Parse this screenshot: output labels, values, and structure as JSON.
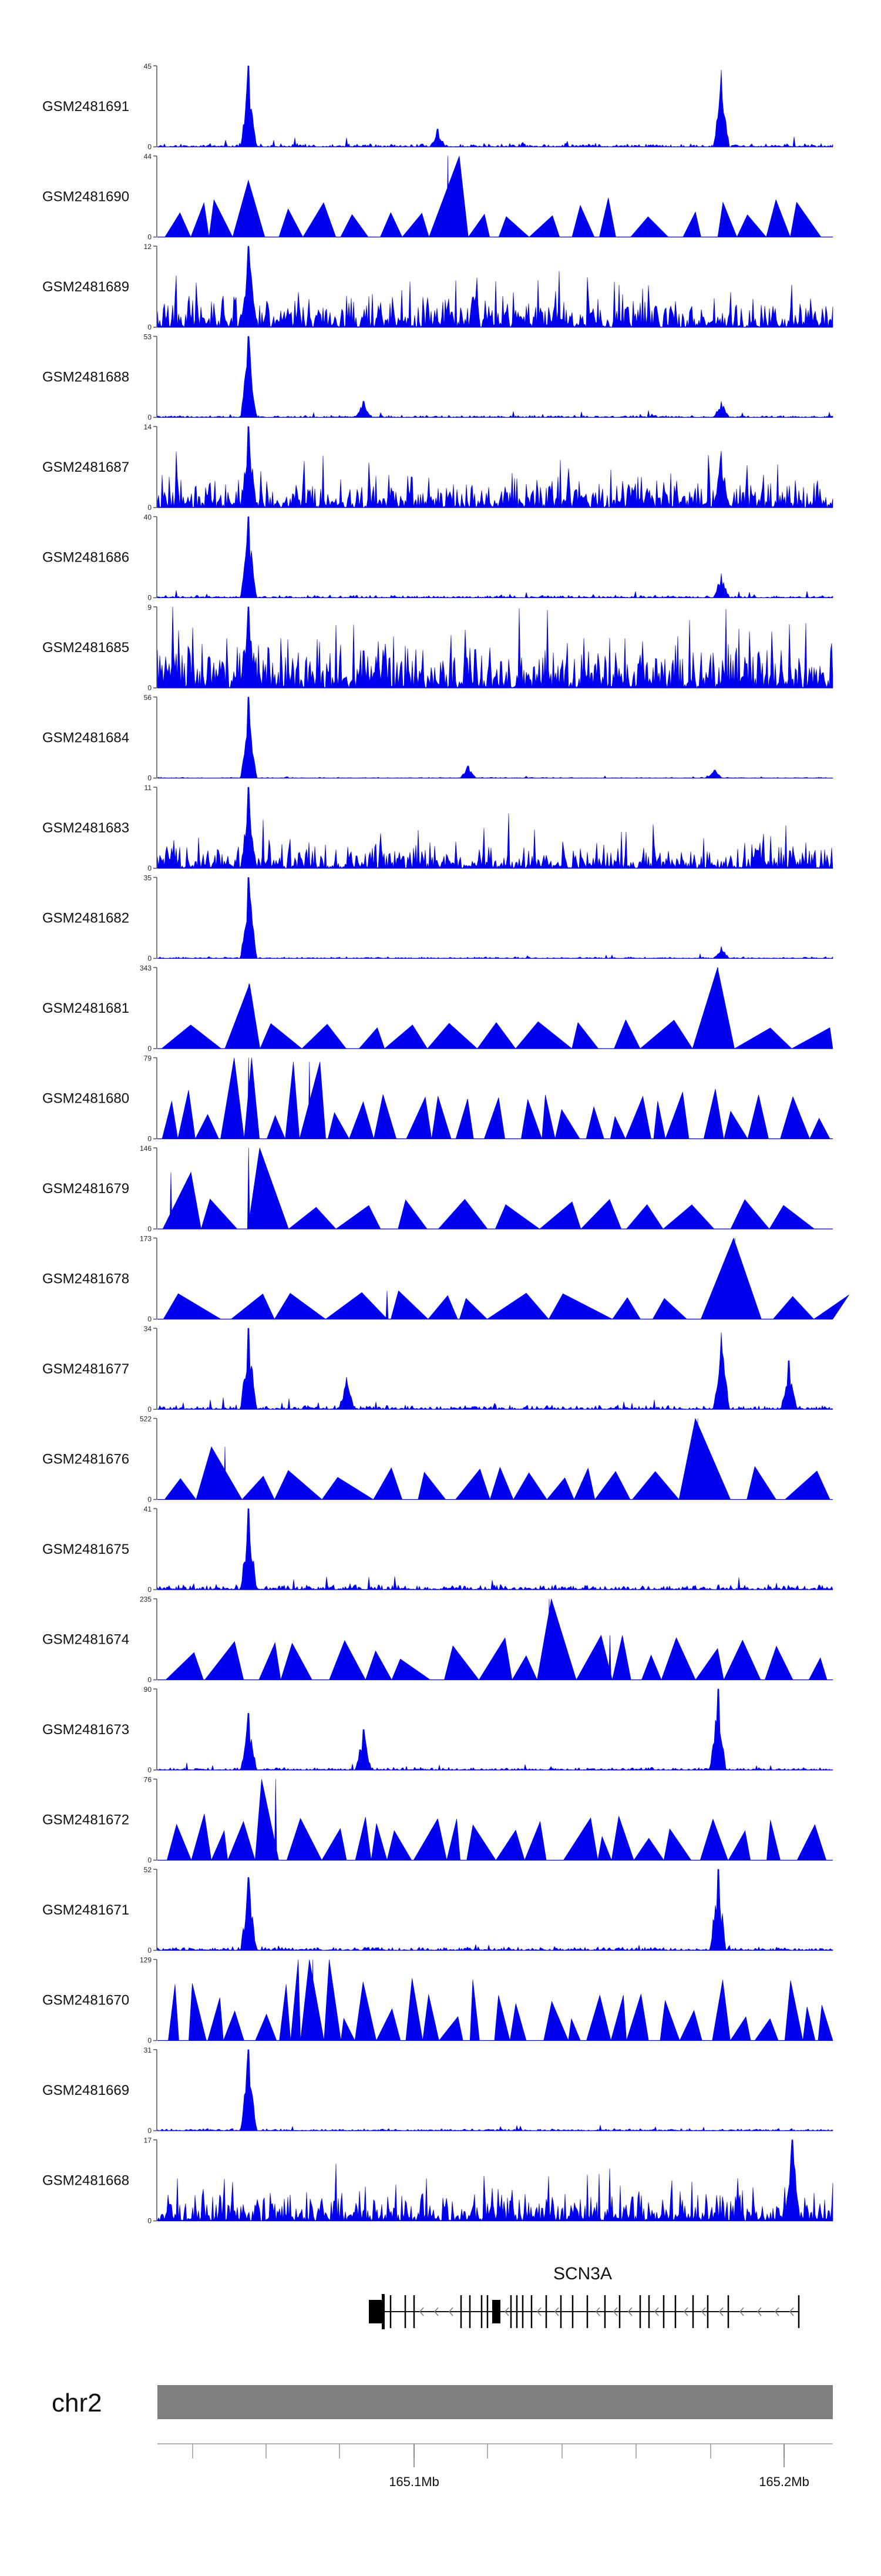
{
  "chart_data": {
    "type": "area",
    "title": "",
    "series_color": "#0000ee",
    "tracks": [
      {
        "name": "GSM2481691",
        "ymin": 0,
        "ymax": 45,
        "shape": "peaks",
        "peaks": [
          [
            0.135,
            1.0
          ],
          [
            0.415,
            0.22
          ],
          [
            0.835,
            0.95
          ]
        ],
        "base": 0.08
      },
      {
        "name": "GSM2481690",
        "ymin": 0,
        "ymax": 44,
        "shape": "triangles",
        "peaks": [
          [
            0.43,
            1.0
          ],
          [
            0.135,
            0.7
          ]
        ],
        "base": 0.45
      },
      {
        "name": "GSM2481689",
        "ymin": 0,
        "ymax": 12,
        "shape": "noisy",
        "peaks": [
          [
            0.135,
            1.0
          ]
        ],
        "base": 0.4
      },
      {
        "name": "GSM2481688",
        "ymin": 0,
        "ymax": 53,
        "shape": "peaks",
        "peaks": [
          [
            0.135,
            1.0
          ],
          [
            0.305,
            0.2
          ],
          [
            0.835,
            0.2
          ]
        ],
        "base": 0.05
      },
      {
        "name": "GSM2481687",
        "ymin": 0,
        "ymax": 14,
        "shape": "noisy",
        "peaks": [
          [
            0.135,
            1.0
          ],
          [
            0.835,
            0.7
          ]
        ],
        "base": 0.35
      },
      {
        "name": "GSM2481686",
        "ymin": 0,
        "ymax": 40,
        "shape": "peaks",
        "peaks": [
          [
            0.135,
            1.0
          ],
          [
            0.835,
            0.3
          ]
        ],
        "base": 0.06
      },
      {
        "name": "GSM2481685",
        "ymin": 0,
        "ymax": 9,
        "shape": "noisy",
        "peaks": [
          [
            0.135,
            1.0
          ]
        ],
        "base": 0.55
      },
      {
        "name": "GSM2481684",
        "ymin": 0,
        "ymax": 56,
        "shape": "peaks",
        "peaks": [
          [
            0.135,
            1.0
          ],
          [
            0.46,
            0.15
          ],
          [
            0.825,
            0.1
          ]
        ],
        "base": 0.02
      },
      {
        "name": "GSM2481683",
        "ymin": 0,
        "ymax": 11,
        "shape": "noisy",
        "peaks": [
          [
            0.135,
            1.0
          ]
        ],
        "base": 0.3
      },
      {
        "name": "GSM2481682",
        "ymin": 0,
        "ymax": 35,
        "shape": "peaks",
        "peaks": [
          [
            0.135,
            1.0
          ],
          [
            0.835,
            0.15
          ]
        ],
        "base": 0.04
      },
      {
        "name": "GSM2481681",
        "ymin": 0,
        "ymax": 343,
        "shape": "triangles",
        "peaks": [
          [
            0.135,
            0.8
          ],
          [
            0.83,
            1.0
          ]
        ],
        "base": 0.2
      },
      {
        "name": "GSM2481680",
        "ymin": 0,
        "ymax": 79,
        "shape": "triangles",
        "peaks": [
          [
            0.135,
            1.0
          ],
          [
            0.225,
            0.95
          ]
        ],
        "base": 0.75
      },
      {
        "name": "GSM2481679",
        "ymin": 0,
        "ymax": 146,
        "shape": "triangles",
        "peaks": [
          [
            0.135,
            1.0
          ],
          [
            0.02,
            0.7
          ]
        ],
        "base": 0.25
      },
      {
        "name": "GSM2481678",
        "ymin": 0,
        "ymax": 173,
        "shape": "triangles",
        "peaks": [
          [
            0.855,
            1.0
          ],
          [
            0.34,
            0.35
          ]
        ],
        "base": 0.15
      },
      {
        "name": "GSM2481677",
        "ymin": 0,
        "ymax": 34,
        "shape": "peaks",
        "peaks": [
          [
            0.135,
            1.0
          ],
          [
            0.835,
            0.95
          ],
          [
            0.28,
            0.4
          ],
          [
            0.935,
            0.6
          ]
        ],
        "base": 0.1
      },
      {
        "name": "GSM2481676",
        "ymin": 0,
        "ymax": 522,
        "shape": "triangles",
        "peaks": [
          [
            0.1,
            0.65
          ],
          [
            0.8,
            1.0
          ]
        ],
        "base": 0.3
      },
      {
        "name": "GSM2481675",
        "ymin": 0,
        "ymax": 41,
        "shape": "peaks",
        "peaks": [
          [
            0.135,
            1.0
          ]
        ],
        "base": 0.12
      },
      {
        "name": "GSM2481674",
        "ymin": 0,
        "ymax": 235,
        "shape": "triangles",
        "peaks": [
          [
            0.58,
            1.0
          ],
          [
            0.67,
            0.55
          ]
        ],
        "base": 0.5
      },
      {
        "name": "GSM2481673",
        "ymin": 0,
        "ymax": 90,
        "shape": "peaks",
        "peaks": [
          [
            0.135,
            0.7
          ],
          [
            0.305,
            0.5
          ],
          [
            0.83,
            1.0
          ]
        ],
        "base": 0.06
      },
      {
        "name": "GSM2481672",
        "ymin": 0,
        "ymax": 76,
        "shape": "triangles",
        "peaks": [
          [
            0.175,
            1.0
          ]
        ],
        "base": 0.6
      },
      {
        "name": "GSM2481671",
        "ymin": 0,
        "ymax": 52,
        "shape": "peaks",
        "peaks": [
          [
            0.135,
            0.9
          ],
          [
            0.83,
            1.0
          ]
        ],
        "base": 0.08
      },
      {
        "name": "GSM2481670",
        "ymin": 0,
        "ymax": 129,
        "shape": "triangles",
        "peaks": [
          [
            0.23,
            1.0
          ]
        ],
        "base": 0.95
      },
      {
        "name": "GSM2481669",
        "ymin": 0,
        "ymax": 31,
        "shape": "peaks",
        "peaks": [
          [
            0.135,
            1.0
          ]
        ],
        "base": 0.05
      },
      {
        "name": "GSM2481668",
        "ymin": 0,
        "ymax": 17,
        "shape": "noisy",
        "peaks": [
          [
            0.94,
            1.0
          ]
        ],
        "base": 0.35
      }
    ],
    "gene": {
      "name": "SCN3A",
      "strand": "-"
    },
    "ideogram": {
      "chromosome": "chr2",
      "ticks": [
        {
          "label": "165.1Mb"
        },
        {
          "label": "165.2Mb"
        }
      ]
    }
  }
}
